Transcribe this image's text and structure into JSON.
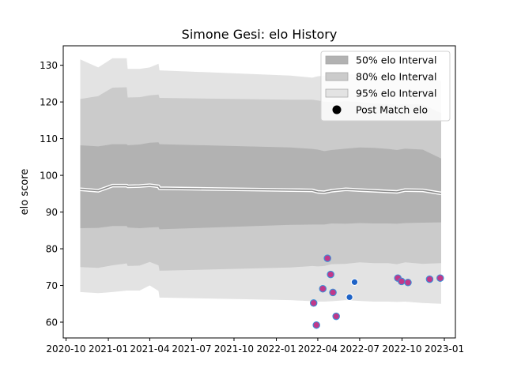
{
  "chart_data": {
    "type": "area",
    "title": "Simone Gesi: elo History",
    "xlabel": "",
    "ylabel": "elo score",
    "x_axis_type": "date",
    "xlim": [
      "2020-09-25",
      "2023-01-25"
    ],
    "ylim": [
      55.7,
      135.3
    ],
    "x_ticks": [
      "2020-10",
      "2021-01",
      "2021-04",
      "2021-07",
      "2021-10",
      "2022-01",
      "2022-04",
      "2022-07",
      "2022-10",
      "2023-01"
    ],
    "y_ticks": [
      60,
      70,
      80,
      90,
      100,
      110,
      120,
      130
    ],
    "grid": false,
    "legend_position": "top-right",
    "colors": {
      "band_50": "#b2b2b2",
      "band_80": "#cbcbcb",
      "band_95": "#e3e3e3",
      "mean_line": "#8c8c8c",
      "mean_line_halo": "#ffffff",
      "points_magenta": "#c0398a",
      "points_blue": "#1f63c6",
      "point_edge": "#3d8fd6"
    },
    "dates": [
      "2020-11-01",
      "2020-12-10",
      "2021-01-10",
      "2021-02-10",
      "2021-02-12",
      "2021-03-10",
      "2021-04-01",
      "2021-04-20",
      "2021-04-22",
      "2022-02-01",
      "2022-03-20",
      "2022-04-01",
      "2022-04-15",
      "2022-05-01",
      "2022-06-01",
      "2022-07-01",
      "2022-08-01",
      "2022-09-01",
      "2022-09-20",
      "2022-10-08",
      "2022-11-15",
      "2022-12-25"
    ],
    "series": [
      {
        "name": "50% elo Interval",
        "kind": "band",
        "lower": [
          85.6,
          85.7,
          86.2,
          86.2,
          85.8,
          85.6,
          85.8,
          85.9,
          85.3,
          86.5,
          86.6,
          86.6,
          86.6,
          86.9,
          86.8,
          87.0,
          86.9,
          86.9,
          86.8,
          87.0,
          87.1,
          87.2
        ],
        "upper": [
          108.2,
          107.9,
          108.5,
          108.5,
          108.2,
          108.4,
          108.9,
          109.0,
          108.5,
          107.6,
          107.2,
          107.0,
          106.6,
          106.9,
          107.3,
          107.6,
          107.5,
          107.2,
          106.9,
          107.3,
          107.0,
          104.6
        ]
      },
      {
        "name": "80% elo Interval",
        "kind": "band",
        "lower": [
          75.0,
          74.8,
          75.5,
          76.0,
          75.3,
          75.4,
          76.4,
          75.5,
          74.0,
          74.9,
          75.3,
          75.2,
          75.3,
          75.8,
          75.9,
          76.3,
          76.1,
          76.1,
          75.8,
          76.3,
          75.9,
          76.1
        ],
        "upper": [
          120.8,
          121.6,
          123.9,
          124.0,
          121.2,
          121.3,
          121.8,
          122.0,
          121.1,
          120.6,
          120.6,
          120.4,
          120.1,
          120.0,
          120.2,
          120.0,
          119.6,
          119.4,
          119.2,
          119.4,
          119.3,
          117.0
        ]
      },
      {
        "name": "95% elo Interval",
        "kind": "band",
        "lower": [
          68.2,
          67.9,
          68.2,
          68.6,
          68.6,
          68.6,
          70.0,
          68.5,
          66.7,
          66.0,
          65.7,
          65.6,
          65.6,
          65.7,
          66.0,
          65.8,
          65.6,
          65.6,
          65.5,
          65.6,
          65.2,
          65.0
        ],
        "upper": [
          131.6,
          129.4,
          131.9,
          131.9,
          129.0,
          129.0,
          129.4,
          130.4,
          128.6,
          127.2,
          126.6,
          127.0,
          127.2,
          127.7,
          127.6,
          127.4,
          127.2,
          126.9,
          126.9,
          127.1,
          127.0,
          125.7
        ]
      },
      {
        "name": "Mean elo",
        "kind": "line",
        "values": [
          96.2,
          95.8,
          97.2,
          97.2,
          97.0,
          97.1,
          97.3,
          97.0,
          96.5,
          96.0,
          95.9,
          95.5,
          95.4,
          95.8,
          96.2,
          96.0,
          95.8,
          95.6,
          95.5,
          96.0,
          95.9,
          95.1
        ]
      },
      {
        "name": "Post Match elo",
        "kind": "scatter",
        "points": [
          {
            "x": "2022-03-23",
            "y": 65.2,
            "c": "magenta"
          },
          {
            "x": "2022-03-29",
            "y": 59.2,
            "c": "magenta"
          },
          {
            "x": "2022-04-12",
            "y": 69.1,
            "c": "magenta"
          },
          {
            "x": "2022-04-22",
            "y": 77.4,
            "c": "magenta"
          },
          {
            "x": "2022-04-29",
            "y": 73.0,
            "c": "magenta"
          },
          {
            "x": "2022-05-04",
            "y": 68.1,
            "c": "magenta"
          },
          {
            "x": "2022-05-11",
            "y": 61.6,
            "c": "magenta"
          },
          {
            "x": "2022-06-09",
            "y": 66.8,
            "c": "blue"
          },
          {
            "x": "2022-06-20",
            "y": 70.9,
            "c": "blue"
          },
          {
            "x": "2022-09-22",
            "y": 72.0,
            "c": "magenta"
          },
          {
            "x": "2022-09-30",
            "y": 71.1,
            "c": "magenta"
          },
          {
            "x": "2022-10-14",
            "y": 70.8,
            "c": "magenta"
          },
          {
            "x": "2022-11-30",
            "y": 71.7,
            "c": "magenta"
          },
          {
            "x": "2022-12-23",
            "y": 72.0,
            "c": "magenta"
          }
        ]
      }
    ],
    "legend": [
      {
        "label": "50% elo Interval",
        "symbol": "patch",
        "color": "#b2b2b2"
      },
      {
        "label": "80% elo Interval",
        "symbol": "patch",
        "color": "#cbcbcb"
      },
      {
        "label": "95% elo Interval",
        "symbol": "patch",
        "color": "#e3e3e3"
      },
      {
        "label": "Post Match elo",
        "symbol": "dot",
        "color": "#000000"
      }
    ]
  }
}
